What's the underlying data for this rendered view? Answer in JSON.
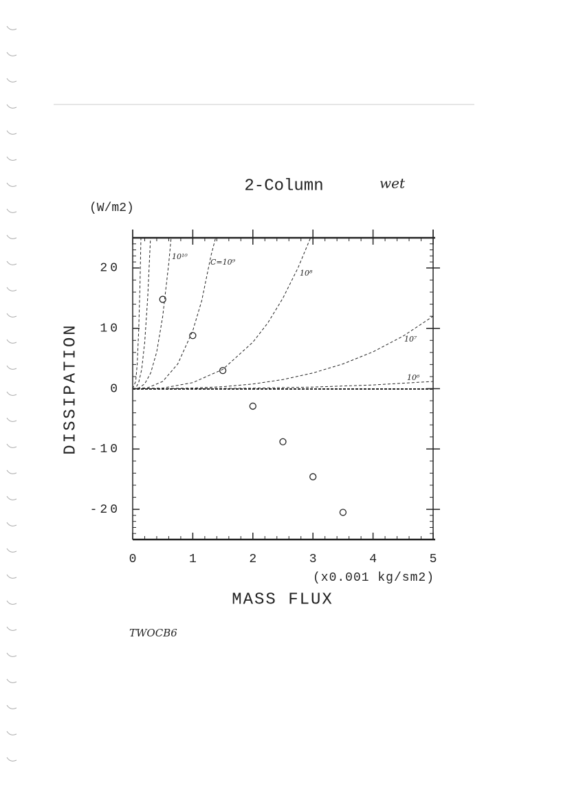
{
  "chart_data": {
    "type": "scatter",
    "title": "2-Column",
    "annotation": "wet",
    "y_unit": "(W/m2)",
    "ylabel": "DISSIPATION",
    "x_unit": "(x0.001 kg/sm2)",
    "xlabel": "MASS FLUX",
    "footnote": "TWOCB6",
    "xlim": [
      0,
      5
    ],
    "ylim": [
      -25,
      25
    ],
    "xticks": [
      0,
      1,
      2,
      3,
      4,
      5
    ],
    "yticks": [
      -20,
      -10,
      0,
      10,
      20
    ],
    "color": "#222222",
    "series": [
      {
        "mode": "markers",
        "x": [
          0.5,
          1,
          1.5,
          2,
          2.5,
          3,
          3.5
        ],
        "values": [
          14.8,
          8.8,
          3,
          -2.9,
          -8.8,
          -14.6,
          -20.5
        ]
      },
      {
        "mode": "dashed",
        "x": [
          0,
          0.05,
          0.075,
          0.1,
          0.12,
          0.137
        ],
        "values": [
          0,
          1.2,
          4.1,
          9.6,
          16.6,
          25
        ]
      },
      {
        "mode": "dashed",
        "x": [
          0,
          0.05,
          0.1,
          0.15,
          0.2,
          0.25,
          0.296
        ],
        "values": [
          0,
          0.1,
          1,
          3.2,
          7.7,
          15,
          25
        ]
      },
      {
        "mode": "dashed",
        "name": "10¹⁰",
        "x": [
          0,
          0.1,
          0.2,
          0.3,
          0.4,
          0.5,
          0.6,
          0.64
        ],
        "values": [
          0,
          0.1,
          0.8,
          2.6,
          6.1,
          12,
          20.7,
          25
        ]
      },
      {
        "mode": "dashed",
        "name": "C=10⁹",
        "x": [
          0,
          0.25,
          0.5,
          0.75,
          1,
          1.15,
          1.3,
          1.38
        ],
        "values": [
          0,
          0.15,
          1.2,
          4.1,
          9.6,
          14.6,
          21.9,
          25
        ]
      },
      {
        "mode": "dashed",
        "name": "10⁸",
        "x": [
          0,
          0.5,
          1,
          1.5,
          2,
          2.25,
          2.5,
          2.75,
          2.96
        ],
        "values": [
          0,
          0.1,
          1,
          3.2,
          7.7,
          10.9,
          15,
          20,
          25
        ]
      },
      {
        "mode": "dashed",
        "name": "10⁷",
        "x": [
          0,
          0.5,
          1,
          1.5,
          2,
          2.5,
          3,
          3.5,
          4,
          4.5,
          5
        ],
        "values": [
          0,
          0.01,
          0.1,
          0.32,
          0.77,
          1.5,
          2.6,
          4.1,
          6.1,
          8.7,
          12
        ]
      },
      {
        "mode": "dashed",
        "name": "10⁶",
        "x": [
          0,
          1,
          2,
          3,
          4,
          5
        ],
        "values": [
          0,
          0.01,
          0.08,
          0.26,
          0.61,
          1.2
        ]
      }
    ]
  }
}
